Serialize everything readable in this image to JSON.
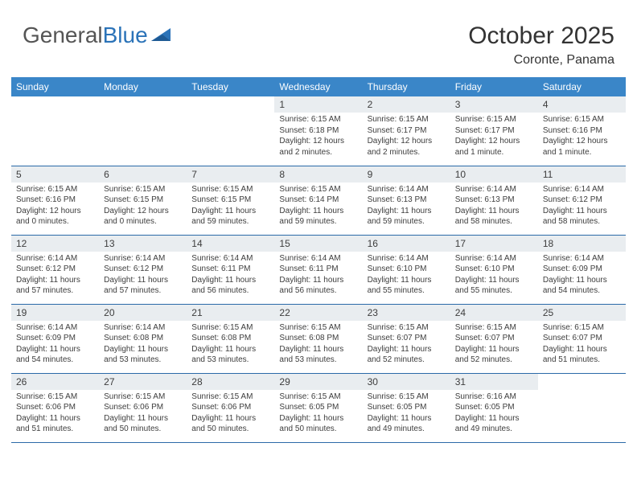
{
  "logo": {
    "text1": "General",
    "text2": "Blue"
  },
  "title": "October 2025",
  "location": "Coronte, Panama",
  "colors": {
    "header_bg": "#3a86c8",
    "daynum_bg": "#e9edf0",
    "border": "#2b6aa8",
    "logo_blue": "#2b73b8"
  },
  "weekdays": [
    "Sunday",
    "Monday",
    "Tuesday",
    "Wednesday",
    "Thursday",
    "Friday",
    "Saturday"
  ],
  "weeks": [
    [
      null,
      null,
      null,
      {
        "n": "1",
        "sr": "6:15 AM",
        "ss": "6:18 PM",
        "dl": "12 hours and 2 minutes."
      },
      {
        "n": "2",
        "sr": "6:15 AM",
        "ss": "6:17 PM",
        "dl": "12 hours and 2 minutes."
      },
      {
        "n": "3",
        "sr": "6:15 AM",
        "ss": "6:17 PM",
        "dl": "12 hours and 1 minute."
      },
      {
        "n": "4",
        "sr": "6:15 AM",
        "ss": "6:16 PM",
        "dl": "12 hours and 1 minute."
      }
    ],
    [
      {
        "n": "5",
        "sr": "6:15 AM",
        "ss": "6:16 PM",
        "dl": "12 hours and 0 minutes."
      },
      {
        "n": "6",
        "sr": "6:15 AM",
        "ss": "6:15 PM",
        "dl": "12 hours and 0 minutes."
      },
      {
        "n": "7",
        "sr": "6:15 AM",
        "ss": "6:15 PM",
        "dl": "11 hours and 59 minutes."
      },
      {
        "n": "8",
        "sr": "6:15 AM",
        "ss": "6:14 PM",
        "dl": "11 hours and 59 minutes."
      },
      {
        "n": "9",
        "sr": "6:14 AM",
        "ss": "6:13 PM",
        "dl": "11 hours and 59 minutes."
      },
      {
        "n": "10",
        "sr": "6:14 AM",
        "ss": "6:13 PM",
        "dl": "11 hours and 58 minutes."
      },
      {
        "n": "11",
        "sr": "6:14 AM",
        "ss": "6:12 PM",
        "dl": "11 hours and 58 minutes."
      }
    ],
    [
      {
        "n": "12",
        "sr": "6:14 AM",
        "ss": "6:12 PM",
        "dl": "11 hours and 57 minutes."
      },
      {
        "n": "13",
        "sr": "6:14 AM",
        "ss": "6:12 PM",
        "dl": "11 hours and 57 minutes."
      },
      {
        "n": "14",
        "sr": "6:14 AM",
        "ss": "6:11 PM",
        "dl": "11 hours and 56 minutes."
      },
      {
        "n": "15",
        "sr": "6:14 AM",
        "ss": "6:11 PM",
        "dl": "11 hours and 56 minutes."
      },
      {
        "n": "16",
        "sr": "6:14 AM",
        "ss": "6:10 PM",
        "dl": "11 hours and 55 minutes."
      },
      {
        "n": "17",
        "sr": "6:14 AM",
        "ss": "6:10 PM",
        "dl": "11 hours and 55 minutes."
      },
      {
        "n": "18",
        "sr": "6:14 AM",
        "ss": "6:09 PM",
        "dl": "11 hours and 54 minutes."
      }
    ],
    [
      {
        "n": "19",
        "sr": "6:14 AM",
        "ss": "6:09 PM",
        "dl": "11 hours and 54 minutes."
      },
      {
        "n": "20",
        "sr": "6:14 AM",
        "ss": "6:08 PM",
        "dl": "11 hours and 53 minutes."
      },
      {
        "n": "21",
        "sr": "6:15 AM",
        "ss": "6:08 PM",
        "dl": "11 hours and 53 minutes."
      },
      {
        "n": "22",
        "sr": "6:15 AM",
        "ss": "6:08 PM",
        "dl": "11 hours and 53 minutes."
      },
      {
        "n": "23",
        "sr": "6:15 AM",
        "ss": "6:07 PM",
        "dl": "11 hours and 52 minutes."
      },
      {
        "n": "24",
        "sr": "6:15 AM",
        "ss": "6:07 PM",
        "dl": "11 hours and 52 minutes."
      },
      {
        "n": "25",
        "sr": "6:15 AM",
        "ss": "6:07 PM",
        "dl": "11 hours and 51 minutes."
      }
    ],
    [
      {
        "n": "26",
        "sr": "6:15 AM",
        "ss": "6:06 PM",
        "dl": "11 hours and 51 minutes."
      },
      {
        "n": "27",
        "sr": "6:15 AM",
        "ss": "6:06 PM",
        "dl": "11 hours and 50 minutes."
      },
      {
        "n": "28",
        "sr": "6:15 AM",
        "ss": "6:06 PM",
        "dl": "11 hours and 50 minutes."
      },
      {
        "n": "29",
        "sr": "6:15 AM",
        "ss": "6:05 PM",
        "dl": "11 hours and 50 minutes."
      },
      {
        "n": "30",
        "sr": "6:15 AM",
        "ss": "6:05 PM",
        "dl": "11 hours and 49 minutes."
      },
      {
        "n": "31",
        "sr": "6:16 AM",
        "ss": "6:05 PM",
        "dl": "11 hours and 49 minutes."
      },
      null
    ]
  ]
}
